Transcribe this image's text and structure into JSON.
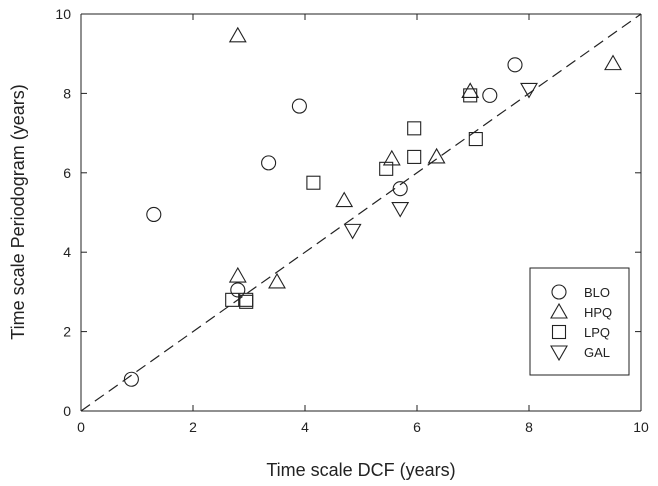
{
  "chart_data": {
    "type": "scatter",
    "xlabel": "Time scale DCF (years)",
    "ylabel": "Time scale Periodogram (years)",
    "xlim": [
      0,
      10
    ],
    "ylim": [
      0,
      10
    ],
    "x_ticks": [
      "0",
      "2",
      "4",
      "6",
      "8",
      "10"
    ],
    "y_ticks": [
      "0",
      "2",
      "4",
      "6",
      "8",
      "10"
    ],
    "grid": false,
    "legend_position": "bottom-right",
    "reference_line": {
      "style": "dashed",
      "from": [
        0,
        0
      ],
      "to": [
        10,
        10
      ]
    },
    "series": [
      {
        "name": "BLO",
        "marker": "circle",
        "points": [
          [
            0.9,
            0.8
          ],
          [
            1.3,
            4.95
          ],
          [
            2.8,
            3.05
          ],
          [
            3.35,
            6.25
          ],
          [
            3.9,
            7.68
          ],
          [
            5.7,
            5.6
          ],
          [
            7.3,
            7.95
          ],
          [
            7.75,
            8.72
          ]
        ]
      },
      {
        "name": "HPQ",
        "marker": "triangle-up",
        "points": [
          [
            2.8,
            9.45
          ],
          [
            2.8,
            3.4
          ],
          [
            3.5,
            3.25
          ],
          [
            4.7,
            5.3
          ],
          [
            5.55,
            6.35
          ],
          [
            6.35,
            6.4
          ],
          [
            6.95,
            8.05
          ],
          [
            9.5,
            8.75
          ]
        ]
      },
      {
        "name": "LPQ",
        "marker": "square",
        "points": [
          [
            2.7,
            2.8
          ],
          [
            2.95,
            2.8
          ],
          [
            2.95,
            2.75
          ],
          [
            4.15,
            5.75
          ],
          [
            5.45,
            6.1
          ],
          [
            5.95,
            7.12
          ],
          [
            5.95,
            6.4
          ],
          [
            6.95,
            7.95
          ],
          [
            7.05,
            6.85
          ]
        ]
      },
      {
        "name": "GAL",
        "marker": "triangle-down",
        "points": [
          [
            4.85,
            4.55
          ],
          [
            5.7,
            5.1
          ],
          [
            8.0,
            8.1
          ]
        ]
      }
    ]
  }
}
